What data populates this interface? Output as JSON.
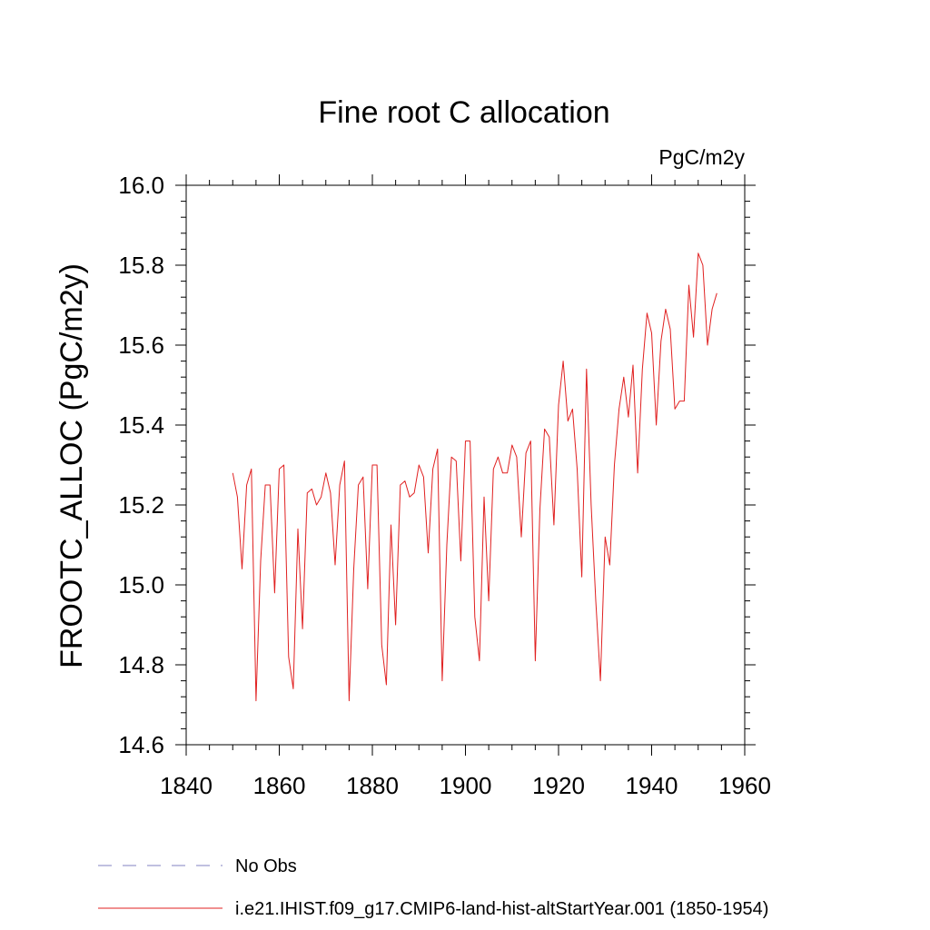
{
  "chart_data": {
    "type": "line",
    "title": "Fine root C allocation",
    "units": "PgC/m2y",
    "xlabel": "",
    "ylabel": "FROOTC_ALLOC  (PgC/m2y)",
    "xlim": [
      1840,
      1960
    ],
    "ylim": [
      14.6,
      16.0
    ],
    "x_ticks": [
      1840,
      1860,
      1880,
      1900,
      1920,
      1940,
      1960
    ],
    "x_tick_labels": [
      "1840",
      "1860",
      "1880",
      "1900",
      "1920",
      "1940",
      "1960"
    ],
    "y_ticks": [
      14.6,
      14.8,
      15.0,
      15.2,
      15.4,
      15.6,
      15.8,
      16.0
    ],
    "y_tick_labels": [
      "14.6",
      "14.8",
      "15.0",
      "15.2",
      "15.4",
      "15.6",
      "15.8",
      "16.0"
    ],
    "grid": false,
    "legend_position": "bottom-left, below plot",
    "legend": [
      {
        "label": "No Obs",
        "color": "#8080c0",
        "style": "dashed"
      },
      {
        "label": "i.e21.IHIST.f09_g17.CMIP6-land-hist-altStartYear.001 (1850-1954)",
        "color": "#e02020",
        "style": "solid"
      }
    ],
    "series": [
      {
        "color": "#e02020",
        "x": [
          1850,
          1851,
          1852,
          1853,
          1854,
          1855,
          1856,
          1857,
          1858,
          1859,
          1860,
          1861,
          1862,
          1863,
          1864,
          1865,
          1866,
          1867,
          1868,
          1869,
          1870,
          1871,
          1872,
          1873,
          1874,
          1875,
          1876,
          1877,
          1878,
          1879,
          1880,
          1881,
          1882,
          1883,
          1884,
          1885,
          1886,
          1887,
          1888,
          1889,
          1890,
          1891,
          1892,
          1893,
          1894,
          1895,
          1896,
          1897,
          1898,
          1899,
          1900,
          1901,
          1902,
          1903,
          1904,
          1905,
          1906,
          1907,
          1908,
          1909,
          1910,
          1911,
          1912,
          1913,
          1914,
          1915,
          1916,
          1917,
          1918,
          1919,
          1920,
          1921,
          1922,
          1923,
          1924,
          1925,
          1926,
          1927,
          1928,
          1929,
          1930,
          1931,
          1932,
          1933,
          1934,
          1935,
          1936,
          1937,
          1938,
          1939,
          1940,
          1941,
          1942,
          1943,
          1944,
          1945,
          1946,
          1947,
          1948,
          1949,
          1950,
          1951,
          1952,
          1953,
          1954
        ],
        "values": [
          15.28,
          15.22,
          15.04,
          15.25,
          15.29,
          14.71,
          15.06,
          15.25,
          15.25,
          14.98,
          15.29,
          15.3,
          14.82,
          14.74,
          15.14,
          14.89,
          15.23,
          15.24,
          15.2,
          15.22,
          15.28,
          15.23,
          15.05,
          15.25,
          15.31,
          14.71,
          15.04,
          15.25,
          15.27,
          14.99,
          15.3,
          15.3,
          14.85,
          14.75,
          15.15,
          14.9,
          15.25,
          15.26,
          15.22,
          15.23,
          15.3,
          15.27,
          15.08,
          15.29,
          15.34,
          14.76,
          15.1,
          15.32,
          15.31,
          15.06,
          15.36,
          15.36,
          14.92,
          14.81,
          15.22,
          14.96,
          15.29,
          15.32,
          15.28,
          15.28,
          15.35,
          15.32,
          15.12,
          15.33,
          15.36,
          14.81,
          15.19,
          15.39,
          15.37,
          15.15,
          15.45,
          15.56,
          15.41,
          15.44,
          15.29,
          15.02,
          15.54,
          15.2,
          14.96,
          14.76,
          15.12,
          15.05,
          15.3,
          15.44,
          15.52,
          15.42,
          15.55,
          15.28,
          15.54,
          15.68,
          15.63,
          15.4,
          15.61,
          15.69,
          15.64,
          15.44,
          15.46,
          15.46,
          15.75,
          15.62,
          15.83,
          15.8,
          15.6,
          15.69,
          15.73
        ]
      }
    ]
  }
}
